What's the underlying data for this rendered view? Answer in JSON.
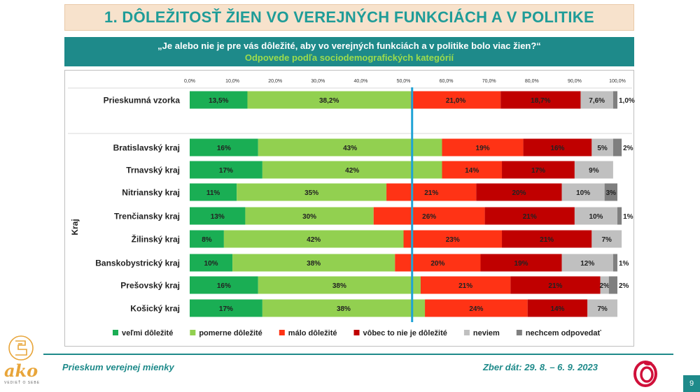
{
  "header": {
    "title": "1. DÔLEŽITOSŤ ŽIEN VO VEREJNÝCH FUNKCIÁCH A V POLITIKE",
    "question": "„Je alebo nie je pre vás dôležité, aby vo verejných funkciách a v politike bolo viac žien?“",
    "subtitle": "Odpovede podľa sociodemografických kategórií"
  },
  "chart_data": {
    "type": "bar",
    "orientation": "horizontal",
    "stacked": true,
    "normalized_percent": true,
    "xlim": [
      0,
      100
    ],
    "x_ticks": [
      "0,0%",
      "10,0%",
      "20,0%",
      "30,0%",
      "40,0%",
      "50,0%",
      "60,0%",
      "70,0%",
      "80,0%",
      "90,0%",
      "100,0%"
    ],
    "reference_line_value": 52,
    "ylabel_group": "Kraj",
    "categories": [
      "Prieskumná vzorka",
      "Bratislavský kraj",
      "Trnavský kraj",
      "Nitriansky kraj",
      "Trenčiansky kraj",
      "Žilinský kraj",
      "Banskobystrický kraj",
      "Prešovský kraj",
      "Košický kraj"
    ],
    "legend_position": "bottom",
    "series": [
      {
        "name": "veľmi dôležité",
        "color": "#1aae54",
        "values": [
          13.5,
          16,
          17,
          11,
          13,
          8,
          10,
          16,
          17
        ],
        "labels": [
          "13,5%",
          "16%",
          "17%",
          "11%",
          "13%",
          "8%",
          "10%",
          "16%",
          "17%"
        ]
      },
      {
        "name": "pomerne dôležité",
        "color": "#92d050",
        "values": [
          38.2,
          43,
          42,
          35,
          30,
          42,
          38,
          38,
          38
        ],
        "labels": [
          "38,2%",
          "43%",
          "42%",
          "35%",
          "30%",
          "42%",
          "38%",
          "38%",
          "38%"
        ]
      },
      {
        "name": "málo dôležité",
        "color": "#ff3315",
        "values": [
          21.0,
          19,
          14,
          21,
          26,
          23,
          20,
          21,
          24
        ],
        "labels": [
          "21,0%",
          "19%",
          "14%",
          "21%",
          "26%",
          "23%",
          "20%",
          "21%",
          "24%"
        ]
      },
      {
        "name": "vôbec to nie je dôležité",
        "color": "#c00000",
        "values": [
          18.7,
          16,
          17,
          20,
          21,
          21,
          19,
          21,
          14
        ],
        "labels": [
          "18,7%",
          "16%",
          "17%",
          "20%",
          "21%",
          "21%",
          "19%",
          "21%",
          "14%"
        ]
      },
      {
        "name": "neviem",
        "color": "#c0c0c0",
        "values": [
          7.6,
          5,
          9,
          10,
          10,
          7,
          12,
          2,
          7
        ],
        "labels": [
          "7,6%",
          "5%",
          "9%",
          "10%",
          "10%",
          "7%",
          "12%",
          "2%",
          "7%"
        ]
      },
      {
        "name": "nechcem odpovedať",
        "color": "#7f7f7f",
        "values": [
          1.0,
          2,
          0,
          3,
          1,
          0,
          1,
          2,
          0
        ],
        "labels": [
          "1,0%",
          "2%",
          "",
          "3%",
          "1%",
          "",
          "1%",
          "2%",
          ""
        ]
      }
    ]
  },
  "footer": {
    "left": "Prieskum verejnej mienky",
    "right": "Zber dát: 29. 8. – 6. 9. 2023",
    "page_number": "9",
    "logo_text": "ako",
    "logo_tagline": "VEDIEŤ O SEBE"
  },
  "colors": {
    "teal": "#1e8a8a",
    "title_bg": "#f7e2cc",
    "reference_line": "#1fa3d6"
  }
}
